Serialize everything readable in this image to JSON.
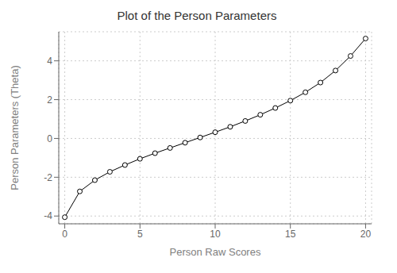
{
  "chart_data": {
    "type": "line",
    "title": "Plot of the Person Parameters",
    "xlabel": "Person Raw Scores",
    "ylabel": "Person Parameters (Theta)",
    "x": [
      0,
      1,
      2,
      3,
      4,
      5,
      6,
      7,
      8,
      9,
      10,
      11,
      12,
      13,
      14,
      15,
      16,
      17,
      18,
      19,
      20
    ],
    "values": [
      -4.06,
      -2.73,
      -2.15,
      -1.72,
      -1.37,
      -1.05,
      -0.76,
      -0.49,
      -0.22,
      0.05,
      0.32,
      0.6,
      0.9,
      1.22,
      1.57,
      1.95,
      2.38,
      2.88,
      3.5,
      4.25,
      5.15
    ],
    "xlim": [
      -0.4,
      20.4
    ],
    "ylim": [
      -4.4,
      5.5
    ],
    "xticks": [
      0,
      5,
      10,
      15,
      20
    ],
    "yticks": [
      -4,
      -2,
      0,
      2,
      4
    ],
    "color": "#000000",
    "marker": "circle",
    "grid": true
  }
}
